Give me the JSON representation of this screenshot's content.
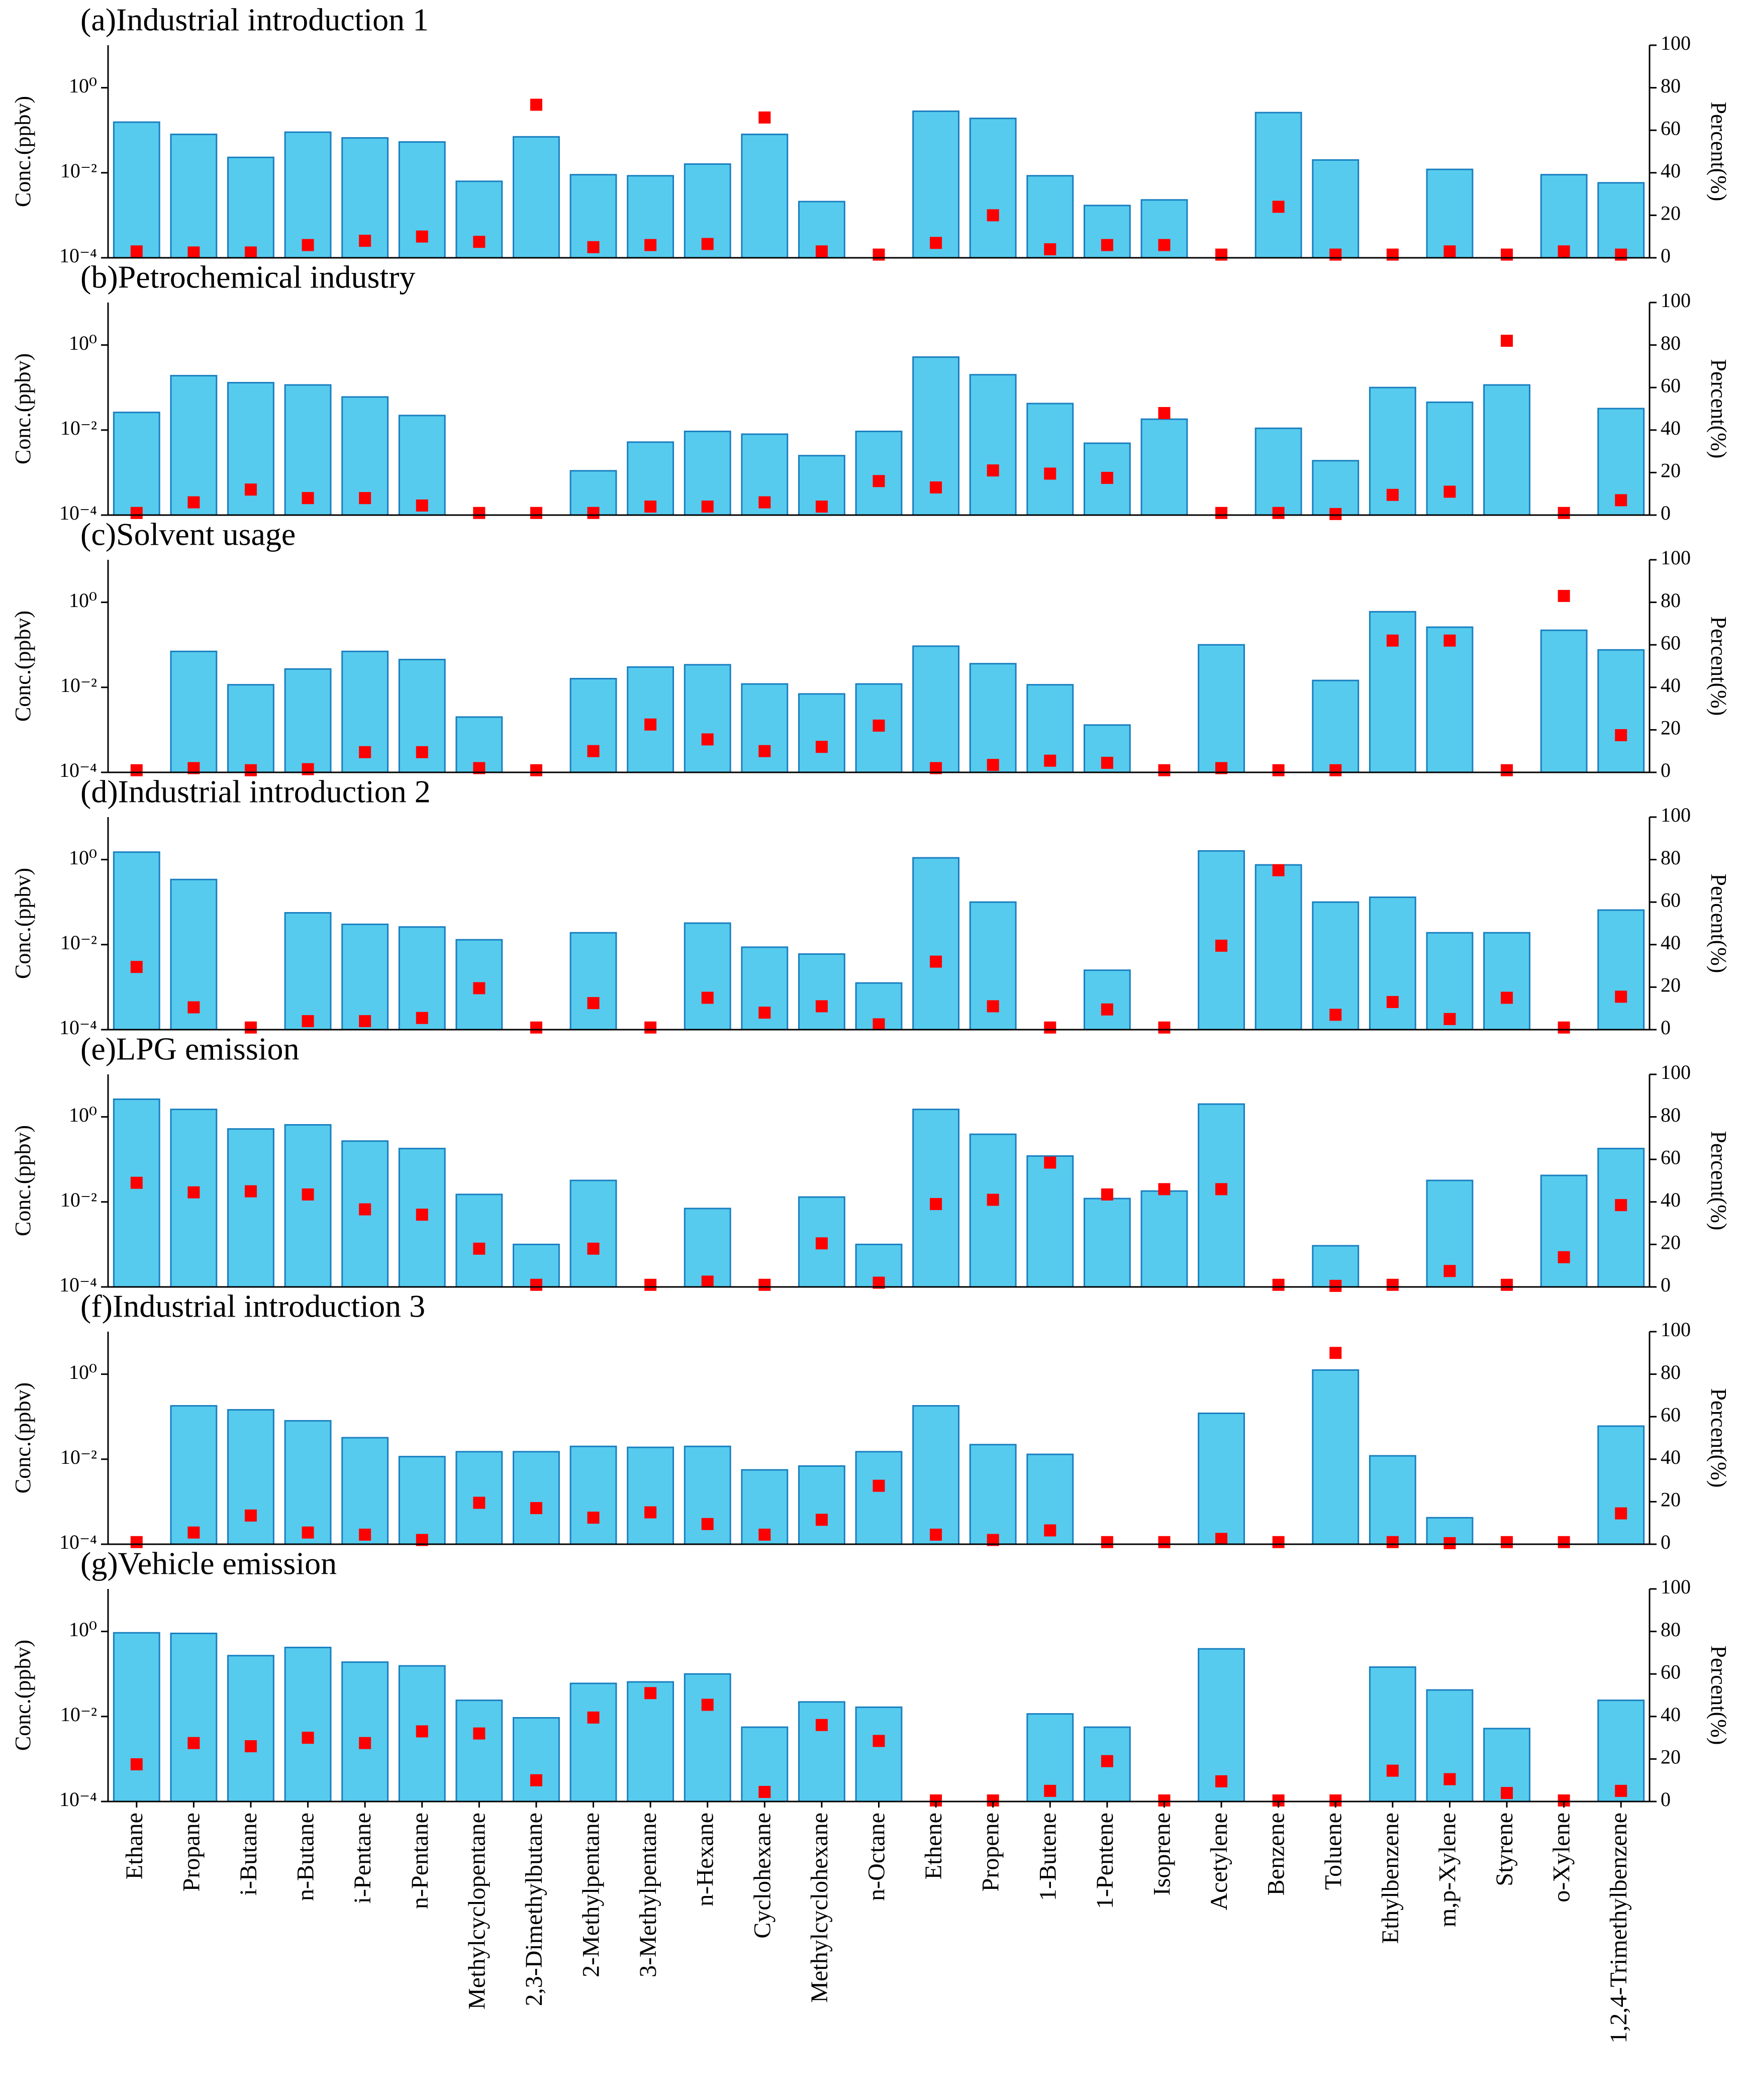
{
  "chart_data": [
    {
      "type": "bar",
      "title": "(a)Industrial introduction 1",
      "ylabel": "Conc.(ppbv)",
      "y2label": "Percent(%)",
      "yscale": "log",
      "ylim": [
        0.0001,
        10
      ],
      "yticks": [
        {
          "value": 0.0001,
          "label": "10⁻⁴"
        },
        {
          "value": 0.01,
          "label": "10⁻²"
        },
        {
          "value": 1,
          "label": "10⁰"
        }
      ],
      "y2lim": [
        0,
        100
      ],
      "y2ticks": [
        0,
        20,
        40,
        60,
        80,
        100
      ],
      "series": [
        {
          "color": "#56cbee",
          "values": [
            0.155,
            0.08,
            0.023,
            0.09,
            0.066,
            0.053,
            0.0063,
            0.07,
            0.009,
            0.0085,
            0.016,
            0.08,
            0.0021,
            null,
            0.28,
            0.19,
            0.0085,
            0.0017,
            0.0023,
            null,
            0.26,
            0.02,
            null,
            0.012,
            null,
            0.009,
            0.0058
          ]
        },
        {
          "type": "scatter",
          "axis": "y2",
          "color": "#ff0000",
          "values": [
            3,
            2.5,
            2.5,
            6,
            8,
            10,
            7.5,
            72,
            5,
            6,
            6.5,
            66,
            3,
            1.5,
            7,
            20,
            4,
            6,
            6,
            1.5,
            24,
            1.5,
            1.5,
            3,
            1.5,
            3,
            1.5
          ]
        }
      ]
    },
    {
      "type": "bar",
      "title": "(b)Petrochemical industry",
      "ylabel": "Conc.(ppbv)",
      "y2label": "Percent(%)",
      "yscale": "log",
      "ylim": [
        0.0001,
        10
      ],
      "yticks": [
        {
          "value": 0.0001,
          "label": "10⁻⁴"
        },
        {
          "value": 0.01,
          "label": "10⁻²"
        },
        {
          "value": 1,
          "label": "10⁰"
        }
      ],
      "y2lim": [
        0,
        100
      ],
      "y2ticks": [
        0,
        20,
        40,
        60,
        80,
        100
      ],
      "series": [
        {
          "color": "#56cbee",
          "values": [
            0.026,
            0.19,
            0.13,
            0.115,
            0.06,
            0.022,
            null,
            null,
            0.0011,
            0.0052,
            0.0093,
            0.008,
            0.0025,
            0.0093,
            0.52,
            0.2,
            0.042,
            0.0049,
            0.018,
            null,
            0.011,
            0.0019,
            0.1,
            0.045,
            0.115,
            null,
            0.032
          ]
        },
        {
          "type": "scatter",
          "axis": "y2",
          "color": "#ff0000",
          "values": [
            1,
            6,
            12,
            8,
            8,
            4.5,
            1,
            1,
            1,
            4,
            4,
            6,
            4,
            16,
            13,
            21,
            19.5,
            17.5,
            48,
            1,
            1,
            0.5,
            9.5,
            11,
            82,
            1,
            7
          ]
        }
      ]
    },
    {
      "type": "bar",
      "title": "(c)Solvent usage",
      "ylabel": "Conc.(ppbv)",
      "y2label": "Percent(%)",
      "yscale": "log",
      "ylim": [
        0.0001,
        10
      ],
      "yticks": [
        {
          "value": 0.0001,
          "label": "10⁻⁴"
        },
        {
          "value": 0.01,
          "label": "10⁻²"
        },
        {
          "value": 1,
          "label": "10⁰"
        }
      ],
      "y2lim": [
        0,
        100
      ],
      "y2ticks": [
        0,
        20,
        40,
        60,
        80,
        100
      ],
      "series": [
        {
          "color": "#56cbee",
          "values": [
            null,
            0.07,
            0.0115,
            0.027,
            0.07,
            0.045,
            0.002,
            null,
            0.016,
            0.03,
            0.034,
            0.012,
            0.007,
            0.012,
            0.093,
            0.036,
            0.0115,
            0.0013,
            null,
            0.1,
            null,
            0.0145,
            0.6,
            0.26,
            null,
            0.22,
            0.076
          ]
        },
        {
          "type": "scatter",
          "axis": "y2",
          "color": "#ff0000",
          "values": [
            1,
            2,
            1,
            1.5,
            9.5,
            9.5,
            2,
            1,
            10,
            22.5,
            15.5,
            10,
            12,
            22,
            2,
            3.5,
            5.5,
            4.5,
            1,
            2,
            1,
            1,
            62,
            62,
            1,
            83,
            17.5
          ]
        }
      ]
    },
    {
      "type": "bar",
      "title": "(d)Industrial introduction 2",
      "ylabel": "Conc.(ppbv)",
      "y2label": "Percent(%)",
      "yscale": "log",
      "ylim": [
        0.0001,
        10
      ],
      "yticks": [
        {
          "value": 0.0001,
          "label": "10⁻⁴"
        },
        {
          "value": 0.01,
          "label": "10⁻²"
        },
        {
          "value": 1,
          "label": "10⁰"
        }
      ],
      "y2lim": [
        0,
        100
      ],
      "y2ticks": [
        0,
        20,
        40,
        60,
        80,
        100
      ],
      "series": [
        {
          "color": "#56cbee",
          "values": [
            1.5,
            0.34,
            null,
            0.056,
            0.03,
            0.026,
            0.013,
            null,
            0.019,
            null,
            0.032,
            0.0087,
            0.006,
            0.00125,
            1.1,
            0.1,
            null,
            0.0025,
            null,
            1.6,
            0.75,
            0.1,
            0.13,
            0.019,
            0.019,
            null,
            0.065
          ]
        },
        {
          "type": "scatter",
          "axis": "y2",
          "color": "#ff0000",
          "values": [
            29.5,
            10.5,
            1,
            4,
            4,
            5.5,
            19.5,
            1,
            12.5,
            1,
            15,
            8,
            11,
            2.5,
            32,
            11,
            1,
            9.5,
            1,
            39.5,
            75,
            7,
            13,
            5,
            15,
            1,
            15.5
          ]
        }
      ]
    },
    {
      "type": "bar",
      "title": "(e)LPG emission",
      "ylabel": "Conc.(ppbv)",
      "y2label": "Percent(%)",
      "yscale": "log",
      "ylim": [
        0.0001,
        10
      ],
      "yticks": [
        {
          "value": 0.0001,
          "label": "10⁻⁴"
        },
        {
          "value": 0.01,
          "label": "10⁻²"
        },
        {
          "value": 1,
          "label": "10⁰"
        }
      ],
      "y2lim": [
        0,
        100
      ],
      "y2ticks": [
        0,
        20,
        40,
        60,
        80,
        100
      ],
      "series": [
        {
          "color": "#56cbee",
          "values": [
            2.6,
            1.5,
            0.52,
            0.65,
            0.27,
            0.18,
            0.015,
            0.001,
            0.032,
            null,
            0.007,
            null,
            0.013,
            0.001,
            1.5,
            0.39,
            0.12,
            0.012,
            0.018,
            2.0,
            null,
            0.00093,
            null,
            0.032,
            null,
            0.042,
            0.18
          ]
        },
        {
          "type": "scatter",
          "axis": "y2",
          "color": "#ff0000",
          "values": [
            49,
            44.5,
            45,
            43.5,
            36.5,
            34,
            18,
            1,
            18,
            1,
            2.5,
            1,
            20.5,
            2,
            39,
            41,
            58.5,
            43.5,
            46,
            46,
            1,
            0.5,
            1,
            7.5,
            1,
            14,
            38.5
          ]
        }
      ]
    },
    {
      "type": "bar",
      "title": "(f)Industrial introduction 3",
      "ylabel": "Conc.(ppbv)",
      "y2label": "Percent(%)",
      "yscale": "log",
      "ylim": [
        0.0001,
        10
      ],
      "yticks": [
        {
          "value": 0.0001,
          "label": "10⁻⁴"
        },
        {
          "value": 0.01,
          "label": "10⁻²"
        },
        {
          "value": 1,
          "label": "10⁰"
        }
      ],
      "y2lim": [
        0,
        100
      ],
      "y2ticks": [
        0,
        20,
        40,
        60,
        80,
        100
      ],
      "series": [
        {
          "color": "#56cbee",
          "values": [
            null,
            0.18,
            0.145,
            0.08,
            0.032,
            0.0115,
            0.015,
            0.015,
            0.02,
            0.019,
            0.02,
            0.0056,
            0.0069,
            0.015,
            0.18,
            0.022,
            0.013,
            null,
            null,
            0.12,
            null,
            1.25,
            0.012,
            0.00042,
            null,
            null,
            0.06
          ]
        },
        {
          "type": "scatter",
          "axis": "y2",
          "color": "#ff0000",
          "values": [
            1,
            5.5,
            13.5,
            5.5,
            4.5,
            2,
            19.5,
            17,
            12.5,
            15,
            9.5,
            4.5,
            11.5,
            27.5,
            4.5,
            2,
            6.5,
            1,
            1,
            2.5,
            1,
            90,
            1,
            0.5,
            1,
            1,
            14.5
          ]
        }
      ]
    },
    {
      "type": "bar",
      "title": "(g)Vehicle emission",
      "ylabel": "Conc.(ppbv)",
      "y2label": "Percent(%)",
      "yscale": "log",
      "ylim": [
        0.0001,
        10
      ],
      "yticks": [
        {
          "value": 0.0001,
          "label": "10⁻⁴"
        },
        {
          "value": 0.01,
          "label": "10⁻²"
        },
        {
          "value": 1,
          "label": "10⁰"
        }
      ],
      "y2lim": [
        0,
        100
      ],
      "y2ticks": [
        0,
        20,
        40,
        60,
        80,
        100
      ],
      "categories": [
        "Ethane",
        "Propane",
        "i-Butane",
        "n-Butane",
        "i-Pentane",
        "n-Pentane",
        "Methylcyclopentane",
        "2,3-Dimethylbutane",
        "2-Methylpentane",
        "3-Methylpentane",
        "n-Hexane",
        "Cyclohexane",
        "Methylcyclohexane",
        "n-Octane",
        "Ethene",
        "Propene",
        "1-Butene",
        "1-Pentene",
        "Isoprene",
        "Acetylene",
        "Benzene",
        "Toluene",
        "Ethylbenzene",
        "m,p-Xylene",
        "Styrene",
        "o-Xylene",
        "1,2,4-Trimethylbenzene"
      ],
      "series": [
        {
          "color": "#56cbee",
          "values": [
            0.93,
            0.9,
            0.27,
            0.42,
            0.19,
            0.155,
            0.024,
            0.0093,
            0.06,
            0.065,
            0.1,
            0.0056,
            0.022,
            0.0165,
            null,
            null,
            0.0115,
            0.0056,
            null,
            0.39,
            null,
            null,
            0.145,
            0.042,
            0.0052,
            null,
            0.024
          ]
        },
        {
          "type": "scatter",
          "axis": "y2",
          "color": "#ff0000",
          "values": [
            17.5,
            27.5,
            26,
            30,
            27.5,
            33,
            32,
            10,
            39.5,
            51,
            45.5,
            4.5,
            36,
            28.5,
            0.5,
            0.5,
            5,
            19,
            0.5,
            9.5,
            0.5,
            0.5,
            14.5,
            10.5,
            4,
            0.5,
            5
          ]
        }
      ]
    }
  ]
}
